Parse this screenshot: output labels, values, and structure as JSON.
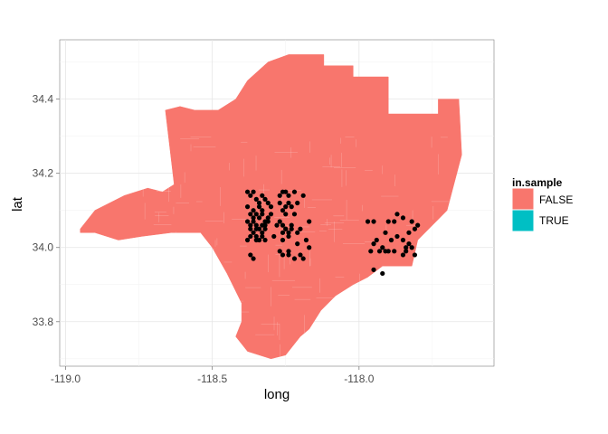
{
  "chart_data": {
    "type": "scatter",
    "title": "",
    "xlabel": "long",
    "ylabel": "lat",
    "xlim": [
      -119.02,
      -117.54
    ],
    "ylim": [
      33.68,
      34.56
    ],
    "xticks": [
      -119.0,
      -118.5,
      -118.0
    ],
    "xtick_labels": [
      "-119.0",
      "-118.5",
      "-118.0"
    ],
    "yticks": [
      33.8,
      34.0,
      34.2,
      34.4
    ],
    "ytick_labels": [
      "33.8",
      "34.0",
      "34.2",
      "34.4"
    ],
    "grid": true,
    "legend": {
      "title": "in.sample",
      "placement": "right",
      "entries": [
        {
          "label": "FALSE",
          "color": "#F8766D"
        },
        {
          "label": "TRUE",
          "color": "#00BFC4"
        }
      ]
    },
    "region": {
      "fill": "#F8766D",
      "border": "#ffffff",
      "outline": [
        [
          -118.95,
          34.05
        ],
        [
          -118.9,
          34.1
        ],
        [
          -118.8,
          34.14
        ],
        [
          -118.72,
          34.16
        ],
        [
          -118.67,
          34.15
        ],
        [
          -118.63,
          34.17
        ],
        [
          -118.66,
          34.37
        ],
        [
          -118.61,
          34.38
        ],
        [
          -118.56,
          34.37
        ],
        [
          -118.48,
          34.37
        ],
        [
          -118.42,
          34.4
        ],
        [
          -118.38,
          34.45
        ],
        [
          -118.31,
          34.5
        ],
        [
          -118.24,
          34.52
        ],
        [
          -118.12,
          34.52
        ],
        [
          -118.12,
          34.49
        ],
        [
          -118.02,
          34.49
        ],
        [
          -118.02,
          34.46
        ],
        [
          -117.9,
          34.46
        ],
        [
          -117.9,
          34.36
        ],
        [
          -117.73,
          34.36
        ],
        [
          -117.73,
          34.4
        ],
        [
          -117.66,
          34.4
        ],
        [
          -117.65,
          34.25
        ],
        [
          -117.7,
          34.1
        ],
        [
          -117.8,
          34.02
        ],
        [
          -117.82,
          33.95
        ],
        [
          -117.92,
          33.95
        ],
        [
          -117.97,
          33.92
        ],
        [
          -118.02,
          33.9
        ],
        [
          -118.08,
          33.87
        ],
        [
          -118.13,
          33.83
        ],
        [
          -118.17,
          33.78
        ],
        [
          -118.2,
          33.76
        ],
        [
          -118.25,
          33.71
        ],
        [
          -118.3,
          33.7
        ],
        [
          -118.38,
          33.72
        ],
        [
          -118.42,
          33.76
        ],
        [
          -118.4,
          33.8
        ],
        [
          -118.4,
          33.85
        ],
        [
          -118.45,
          33.93
        ],
        [
          -118.5,
          34.0
        ],
        [
          -118.54,
          34.04
        ],
        [
          -118.64,
          34.04
        ],
        [
          -118.74,
          34.03
        ],
        [
          -118.82,
          34.02
        ],
        [
          -118.9,
          34.04
        ],
        [
          -118.95,
          34.04
        ]
      ]
    },
    "series": [
      {
        "name": "",
        "color": "#000000",
        "x": [
          -118.38,
          -118.37,
          -118.36,
          -118.35,
          -118.34,
          -118.33,
          -118.32,
          -118.38,
          -118.36,
          -118.34,
          -118.33,
          -118.31,
          -118.3,
          -118.37,
          -118.36,
          -118.35,
          -118.34,
          -118.33,
          -118.32,
          -118.31,
          -118.3,
          -118.38,
          -118.37,
          -118.36,
          -118.35,
          -118.34,
          -118.33,
          -118.32,
          -118.31,
          -118.37,
          -118.36,
          -118.35,
          -118.33,
          -118.32,
          -118.35,
          -118.34,
          -118.33,
          -118.38,
          -118.37,
          -118.35,
          -118.32,
          -118.37,
          -118.36,
          -118.26,
          -118.27,
          -118.25,
          -118.24,
          -118.22,
          -118.19,
          -118.27,
          -118.25,
          -118.24,
          -118.23,
          -118.21,
          -118.26,
          -118.25,
          -118.22,
          -118.28,
          -118.27,
          -118.26,
          -118.25,
          -118.23,
          -118.2,
          -118.17,
          -118.26,
          -118.25,
          -118.24,
          -118.23,
          -118.21,
          -118.29,
          -118.26,
          -118.24,
          -118.21,
          -118.18,
          -118.27,
          -118.24,
          -118.2,
          -118.17,
          -118.26,
          -118.24,
          -118.22,
          -118.19,
          -117.97,
          -117.95,
          -117.9,
          -117.87,
          -117.85,
          -117.88,
          -117.82,
          -117.8,
          -117.91,
          -117.87,
          -117.83,
          -117.81,
          -117.94,
          -117.89,
          -117.85,
          -117.83,
          -117.92,
          -117.88,
          -117.84,
          -117.82,
          -117.96,
          -117.91,
          -117.9,
          -117.85,
          -117.84,
          -117.95,
          -117.93,
          -117.81,
          -117.95,
          -117.92
        ],
        "y": [
          34.15,
          34.14,
          34.15,
          34.13,
          34.12,
          34.14,
          34.13,
          34.11,
          34.1,
          34.11,
          34.1,
          34.12,
          34.11,
          34.09,
          34.08,
          34.09,
          34.08,
          34.09,
          34.07,
          34.08,
          34.09,
          34.07,
          34.06,
          34.07,
          34.06,
          34.05,
          34.06,
          34.06,
          34.07,
          34.05,
          34.04,
          34.05,
          34.04,
          34.05,
          34.03,
          34.02,
          34.03,
          34.02,
          34.03,
          34.02,
          34.02,
          33.98,
          33.97,
          34.15,
          34.14,
          34.15,
          34.14,
          34.15,
          34.14,
          34.12,
          34.11,
          34.12,
          34.11,
          34.12,
          34.1,
          34.09,
          34.09,
          34.06,
          34.07,
          34.06,
          34.05,
          34.06,
          34.05,
          34.07,
          34.04,
          34.05,
          34.04,
          34.05,
          34.04,
          34.03,
          34.02,
          34.03,
          34.01,
          34.02,
          33.99,
          33.98,
          33.98,
          34.0,
          33.98,
          33.99,
          33.97,
          33.97,
          34.07,
          34.07,
          34.07,
          34.09,
          34.08,
          34.07,
          34.07,
          34.06,
          34.04,
          34.03,
          34.04,
          34.05,
          34.02,
          34.02,
          34.02,
          34.01,
          34.0,
          33.99,
          34.0,
          34.0,
          33.99,
          33.99,
          33.99,
          33.98,
          33.99,
          34.01,
          33.99,
          33.98,
          33.94,
          33.93
        ]
      }
    ]
  }
}
